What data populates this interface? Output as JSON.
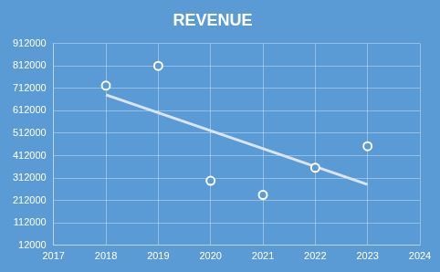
{
  "chart_data": {
    "type": "scatter",
    "title": "REVENUE",
    "x": [
      2018,
      2019,
      2020,
      2021,
      2022,
      2023
    ],
    "values": [
      724000,
      812000,
      300000,
      237000,
      358000,
      454000
    ],
    "color": "#ffffff",
    "marker": "circle",
    "trendline": {
      "x": [
        2018,
        2023
      ],
      "values": [
        683000,
        283000
      ],
      "color": "#dbe5f1"
    },
    "xlim": [
      2017,
      2024
    ],
    "xticks": [
      2017,
      2018,
      2019,
      2020,
      2021,
      2022,
      2023,
      2024
    ],
    "ylim": [
      12000,
      912000
    ],
    "yticks": [
      12000,
      112000,
      212000,
      312000,
      412000,
      512000,
      612000,
      712000,
      812000,
      912000
    ],
    "grid": true
  }
}
